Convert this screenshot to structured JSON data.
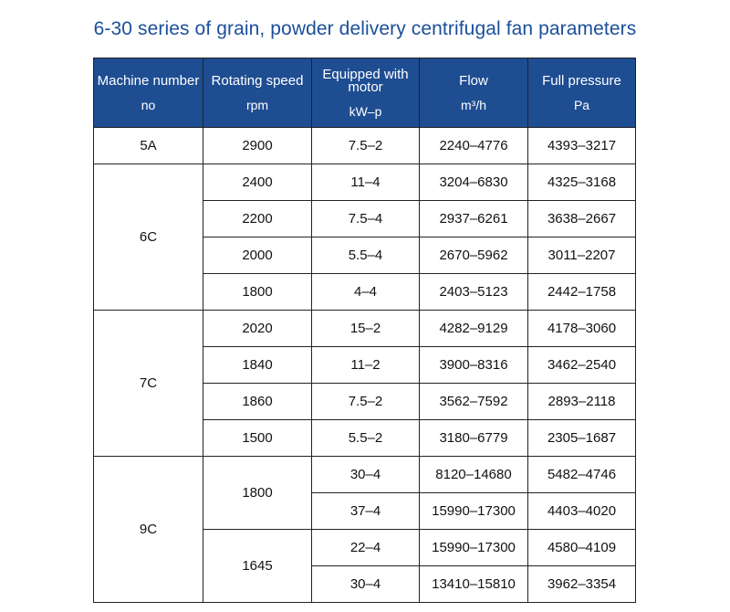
{
  "title": "6-30 series of grain, powder delivery centrifugal fan parameters",
  "headers": [
    {
      "name": "Machine number",
      "unit": "no"
    },
    {
      "name": "Rotating speed",
      "unit": "rpm"
    },
    {
      "name": "Equipped with motor",
      "unit": "kW–p"
    },
    {
      "name": "Flow",
      "unit": "m³/h"
    },
    {
      "name": "Full pressure",
      "unit": "Pa"
    }
  ],
  "rows": [
    {
      "machine": "5A",
      "speed": "2900",
      "motor": "7.5–2",
      "flow": "2240–4776",
      "pressure": "4393–3217"
    },
    {
      "machine": "6C",
      "speed": "2400",
      "motor": "11–4",
      "flow": "3204–6830",
      "pressure": "4325–3168"
    },
    {
      "speed": "2200",
      "motor": "7.5–4",
      "flow": "2937–6261",
      "pressure": "3638–2667"
    },
    {
      "speed": "2000",
      "motor": "5.5–4",
      "flow": "2670–5962",
      "pressure": "3011–2207"
    },
    {
      "speed": "1800",
      "motor": "4–4",
      "flow": "2403–5123",
      "pressure": "2442–1758"
    },
    {
      "machine": "7C",
      "speed": "2020",
      "motor": "15–2",
      "flow": "4282–9129",
      "pressure": "4178–3060"
    },
    {
      "speed": "1840",
      "motor": "11–2",
      "flow": "3900–8316",
      "pressure": "3462–2540"
    },
    {
      "speed": "1860",
      "motor": "7.5–2",
      "flow": "3562–7592",
      "pressure": "2893–2118"
    },
    {
      "speed": "1500",
      "motor": "5.5–2",
      "flow": "3180–6779",
      "pressure": "2305–1687"
    },
    {
      "machine": "9C",
      "speed": "1800",
      "motor": "30–4",
      "flow": "8120–14680",
      "pressure": "5482–4746"
    },
    {
      "motor": "37–4",
      "flow": "15990–17300",
      "pressure": "4403–4020"
    },
    {
      "speed": "1645",
      "motor": "22–4",
      "flow": "15990–17300",
      "pressure": "4580–4109"
    },
    {
      "motor": "30–4",
      "flow": "13410–15810",
      "pressure": "3962–3354"
    }
  ]
}
